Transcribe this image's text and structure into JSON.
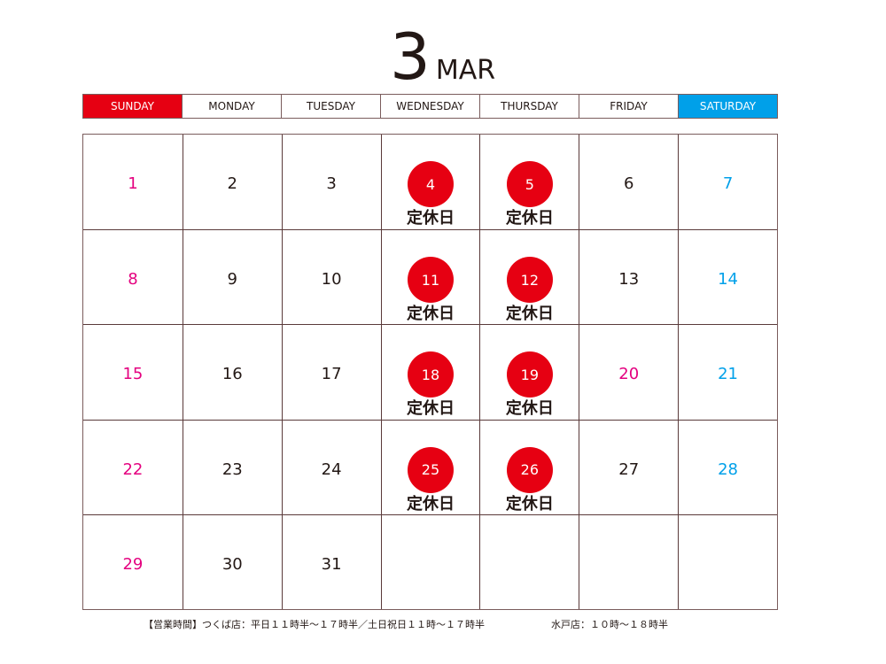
{
  "title": {
    "month_number": "3",
    "month_abbr": "MAR"
  },
  "weekdays": [
    "SUNDAY",
    "MONDAY",
    "TUESDAY",
    "WEDNESDAY",
    "THURSDAY",
    "FRIDAY",
    "SATURDAY"
  ],
  "colors": {
    "sunday": "#e60012",
    "saturday": "#00a0e9",
    "holiday_text": "#e4007f",
    "closed_circle": "#e60012"
  },
  "closed_label": "定休日",
  "weeks": [
    [
      {
        "d": "1",
        "c": "pink"
      },
      {
        "d": "2"
      },
      {
        "d": "3"
      },
      {
        "d": "4",
        "closed": true
      },
      {
        "d": "5",
        "closed": true
      },
      {
        "d": "6"
      },
      {
        "d": "7",
        "c": "blue"
      }
    ],
    [
      {
        "d": "8",
        "c": "pink"
      },
      {
        "d": "9"
      },
      {
        "d": "10"
      },
      {
        "d": "11",
        "closed": true
      },
      {
        "d": "12",
        "closed": true
      },
      {
        "d": "13"
      },
      {
        "d": "14",
        "c": "blue"
      }
    ],
    [
      {
        "d": "15",
        "c": "pink"
      },
      {
        "d": "16"
      },
      {
        "d": "17"
      },
      {
        "d": "18",
        "closed": true
      },
      {
        "d": "19",
        "closed": true
      },
      {
        "d": "20",
        "c": "pink"
      },
      {
        "d": "21",
        "c": "blue"
      }
    ],
    [
      {
        "d": "22",
        "c": "pink"
      },
      {
        "d": "23"
      },
      {
        "d": "24"
      },
      {
        "d": "25",
        "closed": true
      },
      {
        "d": "26",
        "closed": true
      },
      {
        "d": "27"
      },
      {
        "d": "28",
        "c": "blue"
      }
    ],
    [
      {
        "d": "29",
        "c": "pink"
      },
      {
        "d": "30"
      },
      {
        "d": "31"
      },
      {
        "d": ""
      },
      {
        "d": ""
      },
      {
        "d": ""
      },
      {
        "d": ""
      }
    ]
  ],
  "footer": {
    "hours_tsukuba": "【営業時間】つくば店：平日１１時半～１７時半／土日祝日１１時～１７時半",
    "hours_mito": "水戸店：１０時～１８時半"
  }
}
